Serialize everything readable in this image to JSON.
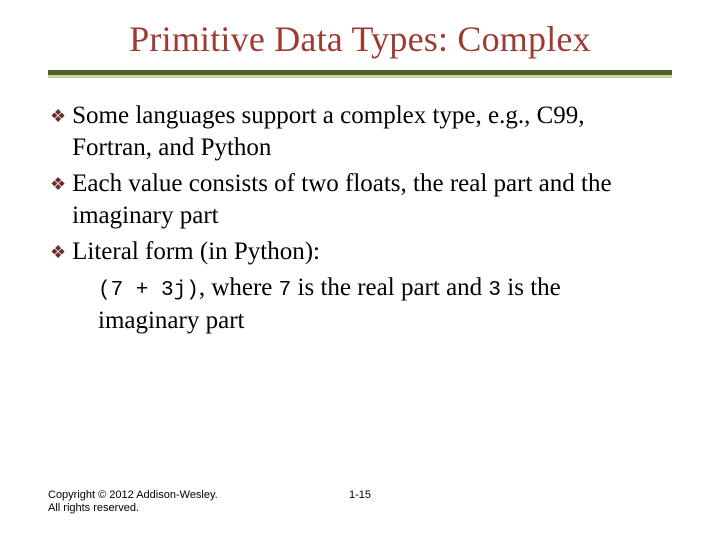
{
  "title": {
    "text": "Primitive Data Types: Complex",
    "color": "#9e3b33",
    "fontsize": 36
  },
  "divider": {
    "dark_color": "#4f6228",
    "light_color": "#c3d69b"
  },
  "bullet_icon": {
    "glyph": "❖",
    "color": "#6b2e2a"
  },
  "bullets": [
    {
      "text": "Some languages support a complex type, e.g., C99, Fortran, and Python"
    },
    {
      "text": "Each value consists of two floats, the real part and the imaginary part"
    },
    {
      "text": "Literal form (in Python):"
    }
  ],
  "sub": {
    "code1": "(7 + 3j)",
    "mid1": ", where ",
    "code2": "7",
    "mid2": " is the real part and ",
    "code3": "3",
    "mid3": " is the imaginary part"
  },
  "footer": {
    "copyright": "Copyright © 2012 Addison-Wesley. All rights reserved.",
    "page": "1-15"
  }
}
